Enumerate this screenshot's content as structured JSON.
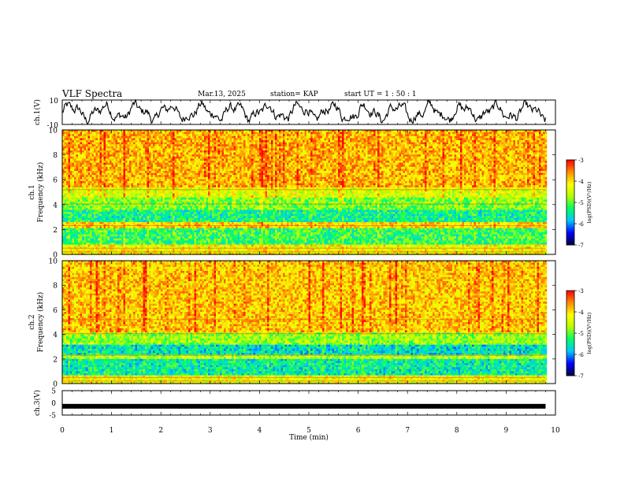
{
  "header": {
    "title": "VLF Spectra",
    "date": "Mar.13, 2025",
    "station": "station= KAP",
    "start_ut": "start  UT =   1 : 50 : 1"
  },
  "chart_data": [
    {
      "type": "line",
      "panel": "ch1-waveform",
      "ylabel": "ch.1(V)",
      "ylim": [
        -10,
        10
      ],
      "y_ticks": [
        "10",
        "-10"
      ],
      "xlim": [
        0,
        10
      ],
      "trace_color": "#000000",
      "data_extent_min": [
        0,
        9.8
      ],
      "description_values": {
        "typical_range": [
          -6,
          6
        ]
      }
    },
    {
      "type": "heatmap",
      "panel": "ch1-spectrogram",
      "ylabel": [
        "ch.1",
        "Frequency  (kHz)"
      ],
      "ylim": [
        0,
        10
      ],
      "y_ticks": [
        "0",
        "2",
        "4",
        "6",
        "8",
        "10"
      ],
      "xlim": [
        0,
        10
      ],
      "colorbar": {
        "label": "log(PSD)(V²/Hz)",
        "ticks": [
          "-3",
          "-4",
          "-5",
          "-6",
          "-7"
        ],
        "range": [
          -7,
          -3
        ]
      },
      "bands_khz": [
        {
          "from": 0,
          "to": 0.8,
          "log_psd": -4.2
        },
        {
          "from": 0.8,
          "to": 2.1,
          "log_psd": -5.2
        },
        {
          "from": 2.1,
          "to": 2.6,
          "log_psd": -4.0
        },
        {
          "from": 2.6,
          "to": 3.6,
          "log_psd": -5.4
        },
        {
          "from": 3.6,
          "to": 4.5,
          "log_psd": -4.9
        },
        {
          "from": 4.5,
          "to": 5.4,
          "log_psd": -4.4
        },
        {
          "from": 5.4,
          "to": 10,
          "log_psd": -3.8
        }
      ]
    },
    {
      "type": "heatmap",
      "panel": "ch2-spectrogram",
      "ylabel": [
        "ch.2",
        "Frequency  (kHz)"
      ],
      "ylim": [
        0,
        10
      ],
      "y_ticks": [
        "0",
        "2",
        "4",
        "6",
        "8",
        "10"
      ],
      "xlim": [
        0,
        10
      ],
      "colorbar": {
        "label": "log(PSD)(V²/Hz)",
        "ticks": [
          "-3",
          "-4",
          "-5",
          "-6",
          "-7"
        ],
        "range": [
          -7,
          -3
        ]
      },
      "bands_khz": [
        {
          "from": 0,
          "to": 0.6,
          "log_psd": -4.3
        },
        {
          "from": 0.6,
          "to": 2.0,
          "log_psd": -5.5
        },
        {
          "from": 2.0,
          "to": 2.4,
          "log_psd": -4.6
        },
        {
          "from": 2.4,
          "to": 3.2,
          "log_psd": -5.6
        },
        {
          "from": 3.2,
          "to": 4.2,
          "log_psd": -4.8
        },
        {
          "from": 4.2,
          "to": 10,
          "log_psd": -3.9
        }
      ]
    },
    {
      "type": "line",
      "panel": "ch3-waveform",
      "ylabel": "ch.3(V)",
      "ylim": [
        -5,
        5
      ],
      "y_ticks": [
        "5",
        "0",
        "-5"
      ],
      "xlim": [
        0,
        10
      ],
      "trace_value": -1.4,
      "trace_color": "#000000"
    }
  ],
  "x_axis": {
    "label": "Time  (min)",
    "ticks": [
      "0",
      "1",
      "2",
      "3",
      "4",
      "5",
      "6",
      "7",
      "8",
      "9",
      "10"
    ],
    "range": [
      0,
      10
    ],
    "data_end": 9.8
  },
  "colors": {
    "colormap": [
      "#00003c",
      "#0000ff",
      "#00c8ff",
      "#00ff64",
      "#b4ff00",
      "#ffff00",
      "#ff8c00",
      "#ff0000",
      "#ffffff"
    ]
  }
}
